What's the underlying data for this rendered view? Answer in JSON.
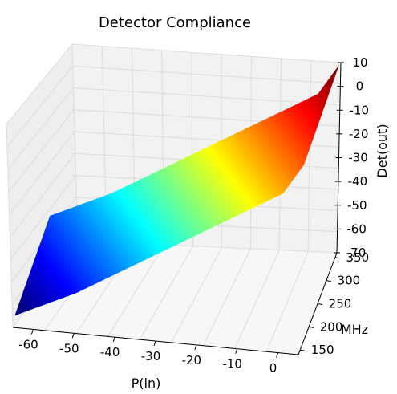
{
  "chart_data": {
    "type": "surface-3d",
    "title": "Detector Compliance",
    "xlabel": "P(in)",
    "ylabel": "MHz",
    "zlabel": "Det(out)",
    "x_ticks": [
      "-60",
      "-50",
      "-40",
      "-30",
      "-20",
      "-10",
      "0"
    ],
    "y_ticks": [
      "150",
      "200",
      "250",
      "300",
      "350"
    ],
    "z_ticks": [
      "10",
      "0",
      "-10",
      "-20",
      "-30",
      "-40",
      "-50",
      "-60",
      "-70"
    ],
    "xlim": [
      -65,
      5
    ],
    "ylim": [
      140,
      360
    ],
    "zlim": [
      -70,
      10
    ],
    "grid": true,
    "colormap": "jet",
    "colormap_stops": [
      "#00007f",
      "#0000ff",
      "#007fff",
      "#00ffff",
      "#7fff7f",
      "#ffff00",
      "#ff7f00",
      "#ff0000",
      "#7f0000"
    ],
    "surface_profile": [
      {
        "p_in": -65,
        "det_out": -67
      },
      {
        "p_in": -60,
        "det_out": -63
      },
      {
        "p_in": -50,
        "det_out": -55
      },
      {
        "p_in": -40,
        "det_out": -45
      },
      {
        "p_in": -30,
        "det_out": -35
      },
      {
        "p_in": -20,
        "det_out": -25
      },
      {
        "p_in": -10,
        "det_out": -15
      },
      {
        "p_in": 0,
        "det_out": -5
      },
      {
        "p_in": 5,
        "det_out": 8
      }
    ]
  }
}
